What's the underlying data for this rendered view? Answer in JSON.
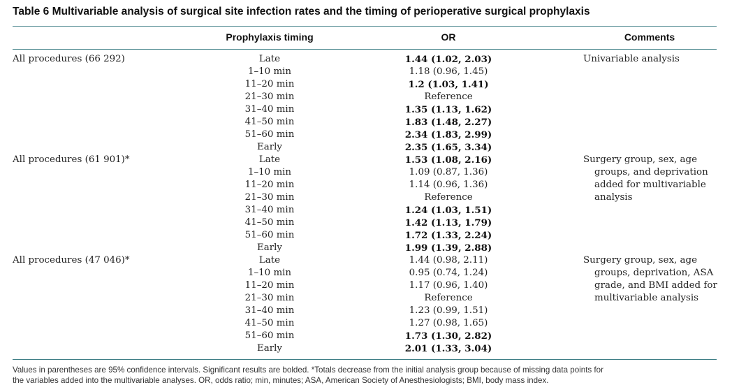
{
  "table": {
    "title": "Table 6 Multivariable analysis of surgical site infection rates and the timing of perioperative surgical prophylaxis",
    "headers": {
      "procedures": "",
      "timing": "Prophylaxis timing",
      "or": "OR",
      "comments": "Comments"
    },
    "groups": [
      {
        "label": "All procedures (66 292)",
        "comment_lines": [
          "Univariable analysis"
        ],
        "rows": [
          {
            "timing": "Late",
            "or": "1.44 (1.02, 2.03)",
            "bold": true
          },
          {
            "timing": "1–10 min",
            "or": "1.18 (0.96, 1.45)",
            "bold": false
          },
          {
            "timing": "11–20 min",
            "or": "1.2 (1.03, 1.41)",
            "bold": true
          },
          {
            "timing": "21–30 min",
            "or": "Reference",
            "bold": false
          },
          {
            "timing": "31–40 min",
            "or": "1.35 (1.13, 1.62)",
            "bold": true
          },
          {
            "timing": "41–50 min",
            "or": "1.83 (1.48, 2.27)",
            "bold": true
          },
          {
            "timing": "51–60 min",
            "or": "2.34 (1.83, 2.99)",
            "bold": true
          },
          {
            "timing": "Early",
            "or": "2.35 (1.65, 3.34)",
            "bold": true
          }
        ]
      },
      {
        "label": "All procedures (61 901)*",
        "comment_lines": [
          "Surgery group, sex, age",
          "groups, and deprivation",
          "added for multivariable",
          "analysis"
        ],
        "rows": [
          {
            "timing": "Late",
            "or": "1.53 (1.08, 2.16)",
            "bold": true
          },
          {
            "timing": "1–10 min",
            "or": "1.09 (0.87, 1.36)",
            "bold": false
          },
          {
            "timing": "11–20 min",
            "or": "1.14 (0.96, 1.36)",
            "bold": false
          },
          {
            "timing": "21–30 min",
            "or": "Reference",
            "bold": false
          },
          {
            "timing": "31–40 min",
            "or": "1.24 (1.03, 1.51)",
            "bold": true
          },
          {
            "timing": "41–50 min",
            "or": "1.42 (1.13, 1.79)",
            "bold": true
          },
          {
            "timing": "51–60 min",
            "or": "1.72 (1.33, 2.24)",
            "bold": true
          },
          {
            "timing": "Early",
            "or": "1.99 (1.39, 2.88)",
            "bold": true
          }
        ]
      },
      {
        "label": "All procedures (47 046)*",
        "comment_lines": [
          "Surgery group, sex, age",
          "groups, deprivation, ASA",
          "grade, and BMI added for",
          "multivariable analysis"
        ],
        "rows": [
          {
            "timing": "Late",
            "or": "1.44 (0.98, 2.11)",
            "bold": false
          },
          {
            "timing": "1–10 min",
            "or": "0.95 (0.74, 1.24)",
            "bold": false
          },
          {
            "timing": "11–20 min",
            "or": "1.17 (0.96, 1.40)",
            "bold": false
          },
          {
            "timing": "21–30 min",
            "or": "Reference",
            "bold": false
          },
          {
            "timing": "31–40 min",
            "or": "1.23 (0.99, 1.51)",
            "bold": false
          },
          {
            "timing": "41–50 min",
            "or": "1.27 (0.98, 1.65)",
            "bold": false
          },
          {
            "timing": "51–60 min",
            "or": "1.73 (1.30, 2.82)",
            "bold": true
          },
          {
            "timing": "Early",
            "or": "2.01 (1.33, 3.04)",
            "bold": true
          }
        ]
      }
    ],
    "footnote_lines": [
      "Values in parentheses are 95% confidence intervals. Significant results are bolded. *Totals decrease from the initial analysis group because of missing data points for",
      "the variables added into the multivariable analyses. OR, odds ratio; min, minutes; ASA, American Society of Anesthesiologists; BMI, body mass index."
    ]
  }
}
